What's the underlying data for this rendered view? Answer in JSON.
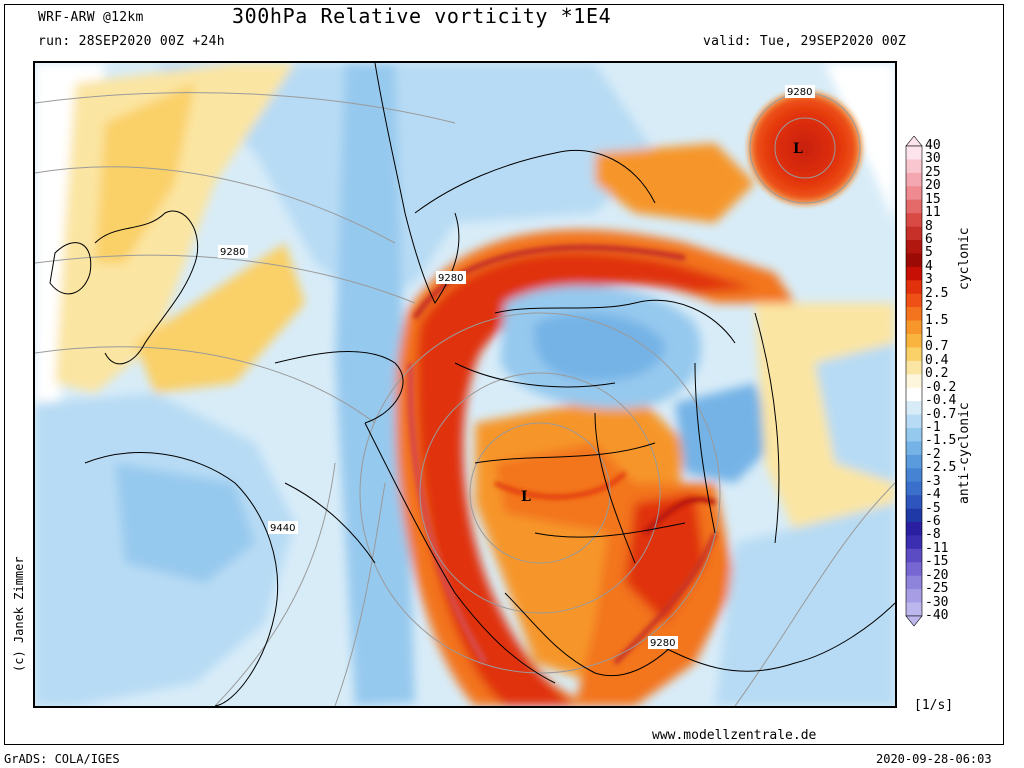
{
  "header": {
    "model": "WRF-ARW @12km",
    "title": "300hPa Relative vorticity *1E4",
    "run": "run: 28SEP2020 00Z +24h",
    "valid": "valid: Tue, 29SEP2020 00Z"
  },
  "map": {
    "contour_labels": [
      "9280",
      "9280",
      "9280",
      "9440",
      "9280"
    ],
    "pressure_center_labels": [
      "L",
      "L"
    ],
    "copyright": "(c) Janek Zimmer",
    "website": "www.modellzentrale.de"
  },
  "colorbar": {
    "levels": [
      "40",
      "30",
      "25",
      "20",
      "15",
      "11",
      "8",
      "6",
      "5",
      "4",
      "3",
      "2.5",
      "2",
      "1.5",
      "1",
      "0.7",
      "0.4",
      "0.2",
      "-0.2",
      "-0.4",
      "-0.7",
      "-1",
      "-1.5",
      "-2",
      "-2.5",
      "-3",
      "-4",
      "-5",
      "-6",
      "-8",
      "-11",
      "-15",
      "-20",
      "-25",
      "-30",
      "-40"
    ],
    "colors": [
      "#fde4ec",
      "#f9c6cf",
      "#f4a7b0",
      "#ee8a90",
      "#e46a6a",
      "#d94a45",
      "#c63028",
      "#b2170f",
      "#9c0a06",
      "#c80f05",
      "#e0300c",
      "#ee5015",
      "#f3741d",
      "#f6962b",
      "#f8b43e",
      "#fad068",
      "#fbe5a2",
      "#fdf6dc",
      "#ffffff",
      "#d8ecf8",
      "#b7dbf4",
      "#96c9ee",
      "#75b3e6",
      "#5a9bdd",
      "#4684d3",
      "#3a6fcb",
      "#2d55bd",
      "#1f3aa6",
      "#2a1fa0",
      "#3c2eb0",
      "#5b4cc4",
      "#7667d2",
      "#8f84dc",
      "#a69de4",
      "#bcb7ec"
    ],
    "cyclonic_label": "cyclonic",
    "anticyclonic_label": "anti-cyclonic",
    "unit": "[1/s]"
  },
  "footer": {
    "left": "GrADS: COLA/IGES",
    "right": "2020-09-28-06:03"
  }
}
